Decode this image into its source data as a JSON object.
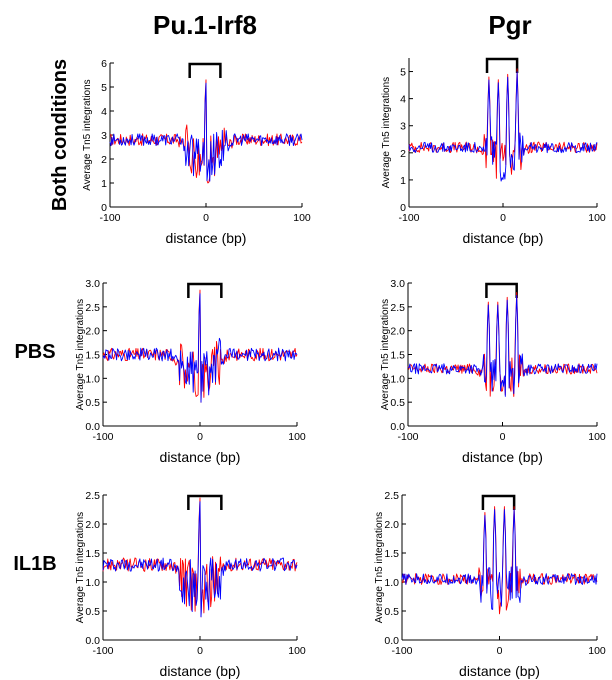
{
  "figure": {
    "col_titles": [
      "Pu.1-Irf8",
      "Pgr"
    ],
    "row_labels": [
      "Both conditions",
      "PBS",
      "IL1B"
    ]
  },
  "colors": {
    "series_a": "#ff0000",
    "series_b": "#0000ff"
  },
  "chart_data": [
    {
      "type": "line",
      "xlabel": "distance (bp)",
      "ylabel": "Average Tn5 integrations",
      "xlim": [
        -100,
        100
      ],
      "ylim": [
        0,
        6
      ],
      "yticks": [
        "0",
        "1",
        "2",
        "3",
        "4",
        "5",
        "6"
      ],
      "xticks": [
        "-100",
        "0",
        "100"
      ],
      "bracket": [
        -17,
        15
      ],
      "baseline": 2.8,
      "dip": 1.1,
      "peaks": [
        [
          0,
          5.3
        ]
      ],
      "grid": false
    },
    {
      "type": "line",
      "xlabel": "distance (bp)",
      "ylabel": "Average Tn5 integrations",
      "xlim": [
        -100,
        100
      ],
      "ylim": [
        0,
        5.5
      ],
      "yticks": [
        "0",
        "1",
        "2",
        "3",
        "4",
        "5"
      ],
      "xticks": [
        "-100",
        "0",
        "100"
      ],
      "bracket": [
        -17,
        15
      ],
      "baseline": 2.2,
      "dip": 1.2,
      "peaks": [
        [
          -15,
          4.8
        ],
        [
          -5,
          4.7
        ],
        [
          5,
          4.9
        ],
        [
          15,
          5.1
        ]
      ],
      "grid": false
    },
    {
      "type": "line",
      "xlabel": "distance (bp)",
      "ylabel": "Average Tn5 integrations",
      "xlim": [
        -100,
        100
      ],
      "ylim": [
        0,
        3.0
      ],
      "yticks": [
        "0.0",
        "0.5",
        "1.0",
        "1.5",
        "2.0",
        "2.5",
        "3.0"
      ],
      "xticks": [
        "-100",
        "0",
        "100"
      ],
      "bracket": [
        -12,
        22
      ],
      "baseline": 1.5,
      "dip": 0.5,
      "peaks": [
        [
          0,
          2.85
        ]
      ],
      "grid": false
    },
    {
      "type": "line",
      "xlabel": "distance (bp)",
      "ylabel": "Average Tn5 integrations",
      "xlim": [
        -100,
        100
      ],
      "ylim": [
        0,
        3.0
      ],
      "yticks": [
        "0.0",
        "0.5",
        "1.0",
        "1.5",
        "2.0",
        "2.5",
        "3.0"
      ],
      "xticks": [
        "-100",
        "0",
        "100"
      ],
      "bracket": [
        -17,
        15
      ],
      "baseline": 1.2,
      "dip": 0.7,
      "peaks": [
        [
          -15,
          2.6
        ],
        [
          -5,
          2.6
        ],
        [
          5,
          2.7
        ],
        [
          15,
          2.8
        ]
      ],
      "grid": false
    },
    {
      "type": "line",
      "xlabel": "distance (bp)",
      "ylabel": "Average Tn5 integrations",
      "xlim": [
        -100,
        100
      ],
      "ylim": [
        0,
        2.5
      ],
      "yticks": [
        "0.0",
        "0.5",
        "1.0",
        "1.5",
        "2.0",
        "2.5"
      ],
      "xticks": [
        "-100",
        "0",
        "100"
      ],
      "bracket": [
        -12,
        22
      ],
      "baseline": 1.3,
      "dip": 0.4,
      "peaks": [
        [
          0,
          2.45
        ]
      ],
      "grid": false
    },
    {
      "type": "line",
      "xlabel": "distance (bp)",
      "ylabel": "Average Tn5 integrations",
      "xlim": [
        -100,
        100
      ],
      "ylim": [
        0,
        2.5
      ],
      "yticks": [
        "0.0",
        "0.5",
        "1.0",
        "1.5",
        "2.0",
        "2.5"
      ],
      "xticks": [
        "-100",
        "0",
        "100"
      ],
      "bracket": [
        -17,
        15
      ],
      "baseline": 1.05,
      "dip": 0.6,
      "peaks": [
        [
          -15,
          2.2
        ],
        [
          -5,
          2.3
        ],
        [
          5,
          2.3
        ],
        [
          15,
          2.3
        ]
      ],
      "grid": false
    }
  ]
}
